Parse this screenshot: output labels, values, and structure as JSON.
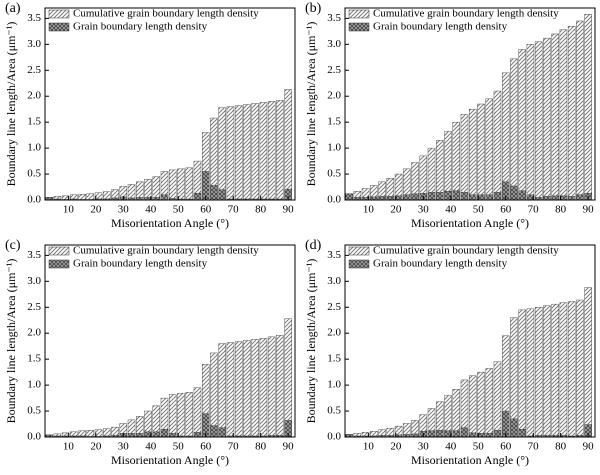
{
  "chart_data": [
    {
      "type": "bar",
      "panel_label": "(a)",
      "x_label": "Misorientation Angle (°)",
      "y_label": "Boundary line length/Area (μm⁻¹)",
      "x": [
        3,
        6,
        9,
        12,
        15,
        18,
        21,
        24,
        27,
        30,
        33,
        36,
        39,
        42,
        45,
        48,
        51,
        54,
        57,
        60,
        63,
        66,
        69,
        72,
        75,
        78,
        81,
        84,
        87,
        90
      ],
      "series": [
        {
          "name": "Cumulative grain boundary length density",
          "color": "#7a7a7a",
          "hatch": "diagonal",
          "values": [
            0.05,
            0.07,
            0.08,
            0.1,
            0.11,
            0.12,
            0.14,
            0.16,
            0.2,
            0.26,
            0.3,
            0.35,
            0.4,
            0.45,
            0.55,
            0.58,
            0.6,
            0.62,
            0.75,
            1.3,
            1.58,
            1.78,
            1.8,
            1.82,
            1.84,
            1.86,
            1.88,
            1.9,
            1.92,
            2.13
          ]
        },
        {
          "name": "Grain boundary length density",
          "color": "#4a4a4a",
          "hatch": "cross",
          "values": [
            0.05,
            0.02,
            0.01,
            0.02,
            0.01,
            0.01,
            0.02,
            0.02,
            0.04,
            0.06,
            0.04,
            0.05,
            0.05,
            0.05,
            0.1,
            0.03,
            0.02,
            0.02,
            0.13,
            0.55,
            0.28,
            0.2,
            0.02,
            0.02,
            0.02,
            0.02,
            0.02,
            0.02,
            0.02,
            0.21
          ]
        }
      ],
      "xlim": [
        1.5,
        92.5
      ],
      "ylim": [
        0,
        3.7
      ],
      "xticks": [
        10,
        20,
        30,
        40,
        50,
        60,
        70,
        80,
        90
      ],
      "yticks": [
        {
          "value": 0,
          "label": "0.0"
        },
        0.5,
        {
          "value": 1,
          "label": "1.0"
        },
        1.5,
        {
          "value": 2,
          "label": "2.0"
        },
        2.5,
        {
          "value": 3,
          "label": "3.0"
        },
        3.5
      ],
      "legend": "upper left"
    },
    {
      "type": "bar",
      "panel_label": "(b)",
      "x_label": "Misorientation Angle (°)",
      "y_label": "Boundary line length/Area (μm⁻¹)",
      "x": [
        3,
        6,
        9,
        12,
        15,
        18,
        21,
        24,
        27,
        30,
        33,
        36,
        39,
        42,
        45,
        48,
        51,
        54,
        57,
        60,
        63,
        66,
        69,
        72,
        75,
        78,
        81,
        84,
        87,
        90
      ],
      "series": [
        {
          "name": "Cumulative grain boundary length density",
          "color": "#7a7a7a",
          "hatch": "diagonal",
          "values": [
            0.12,
            0.17,
            0.22,
            0.28,
            0.35,
            0.42,
            0.5,
            0.6,
            0.72,
            0.85,
            1.0,
            1.15,
            1.32,
            1.5,
            1.65,
            1.75,
            1.85,
            1.95,
            2.1,
            2.45,
            2.72,
            2.9,
            3.0,
            3.05,
            3.12,
            3.2,
            3.28,
            3.35,
            3.45,
            3.58
          ]
        },
        {
          "name": "Grain boundary length density",
          "color": "#4a4a4a",
          "hatch": "cross",
          "values": [
            0.12,
            0.05,
            0.05,
            0.06,
            0.07,
            0.07,
            0.08,
            0.1,
            0.12,
            0.13,
            0.15,
            0.15,
            0.17,
            0.18,
            0.15,
            0.1,
            0.1,
            0.1,
            0.15,
            0.35,
            0.27,
            0.18,
            0.1,
            0.05,
            0.07,
            0.08,
            0.08,
            0.07,
            0.1,
            0.13
          ]
        }
      ],
      "xlim": [
        1.5,
        92.5
      ],
      "ylim": [
        0,
        3.7
      ],
      "xticks": [
        10,
        20,
        30,
        40,
        50,
        60,
        70,
        80,
        90
      ],
      "yticks": [
        {
          "value": 0,
          "label": "0.0"
        },
        0.5,
        {
          "value": 1,
          "label": "1.0"
        },
        1.5,
        {
          "value": 2,
          "label": "2.0"
        },
        2.5,
        {
          "value": 3,
          "label": "3.0"
        },
        3.5
      ],
      "legend": "upper left"
    },
    {
      "type": "bar",
      "panel_label": "(c)",
      "x_label": "Misorientation Angle (°)",
      "y_label": "Boundary line length/Area (μm⁻¹)",
      "x": [
        3,
        6,
        9,
        12,
        15,
        18,
        21,
        24,
        27,
        30,
        33,
        36,
        39,
        42,
        45,
        48,
        51,
        54,
        57,
        60,
        63,
        66,
        69,
        72,
        75,
        78,
        81,
        84,
        87,
        90
      ],
      "series": [
        {
          "name": "Cumulative grain boundary length density",
          "color": "#7a7a7a",
          "hatch": "diagonal",
          "values": [
            0.04,
            0.06,
            0.08,
            0.1,
            0.12,
            0.13,
            0.14,
            0.16,
            0.19,
            0.26,
            0.33,
            0.4,
            0.5,
            0.6,
            0.75,
            0.82,
            0.84,
            0.86,
            0.95,
            1.4,
            1.62,
            1.8,
            1.82,
            1.84,
            1.86,
            1.88,
            1.9,
            1.93,
            1.96,
            2.28
          ]
        },
        {
          "name": "Grain boundary length density",
          "color": "#4a4a4a",
          "hatch": "cross",
          "values": [
            0.04,
            0.02,
            0.02,
            0.02,
            0.02,
            0.01,
            0.01,
            0.02,
            0.03,
            0.07,
            0.07,
            0.07,
            0.1,
            0.1,
            0.15,
            0.07,
            0.02,
            0.02,
            0.09,
            0.45,
            0.22,
            0.18,
            0.02,
            0.02,
            0.02,
            0.02,
            0.02,
            0.03,
            0.03,
            0.32
          ]
        }
      ],
      "xlim": [
        1.5,
        92.5
      ],
      "ylim": [
        0,
        3.7
      ],
      "xticks": [
        10,
        20,
        30,
        40,
        50,
        60,
        70,
        80,
        90
      ],
      "yticks": [
        {
          "value": 0,
          "label": "0.0"
        },
        0.5,
        {
          "value": 1,
          "label": "1.0"
        },
        1.5,
        {
          "value": 2,
          "label": "2.0"
        },
        2.5,
        {
          "value": 3,
          "label": "3.0"
        },
        3.5
      ],
      "legend": "upper left"
    },
    {
      "type": "bar",
      "panel_label": "(d)",
      "x_label": "Misorientation Angle (°)",
      "y_label": "Boundary line length/Area (μm⁻¹)",
      "x": [
        3,
        6,
        9,
        12,
        15,
        18,
        21,
        24,
        27,
        30,
        33,
        36,
        39,
        42,
        45,
        48,
        51,
        54,
        57,
        60,
        63,
        66,
        69,
        72,
        75,
        78,
        81,
        84,
        87,
        90
      ],
      "series": [
        {
          "name": "Cumulative grain boundary length density",
          "color": "#7a7a7a",
          "hatch": "diagonal",
          "values": [
            0.05,
            0.07,
            0.09,
            0.11,
            0.14,
            0.17,
            0.21,
            0.26,
            0.32,
            0.43,
            0.55,
            0.68,
            0.8,
            0.92,
            1.1,
            1.18,
            1.25,
            1.32,
            1.45,
            1.95,
            2.3,
            2.45,
            2.47,
            2.5,
            2.53,
            2.56,
            2.59,
            2.61,
            2.64,
            2.88
          ]
        },
        {
          "name": "Grain boundary length density",
          "color": "#4a4a4a",
          "hatch": "cross",
          "values": [
            0.05,
            0.02,
            0.02,
            0.02,
            0.03,
            0.03,
            0.04,
            0.05,
            0.06,
            0.11,
            0.12,
            0.13,
            0.12,
            0.12,
            0.18,
            0.08,
            0.07,
            0.07,
            0.13,
            0.5,
            0.35,
            0.15,
            0.02,
            0.03,
            0.03,
            0.03,
            0.03,
            0.02,
            0.03,
            0.24
          ]
        }
      ],
      "xlim": [
        1.5,
        92.5
      ],
      "ylim": [
        0,
        3.7
      ],
      "xticks": [
        10,
        20,
        30,
        40,
        50,
        60,
        70,
        80,
        90
      ],
      "yticks": [
        {
          "value": 0,
          "label": "0.0"
        },
        0.5,
        {
          "value": 1,
          "label": "1.0"
        },
        1.5,
        {
          "value": 2,
          "label": "2.0"
        },
        2.5,
        {
          "value": 3,
          "label": "3.0"
        },
        3.5
      ],
      "legend": "upper left"
    }
  ]
}
